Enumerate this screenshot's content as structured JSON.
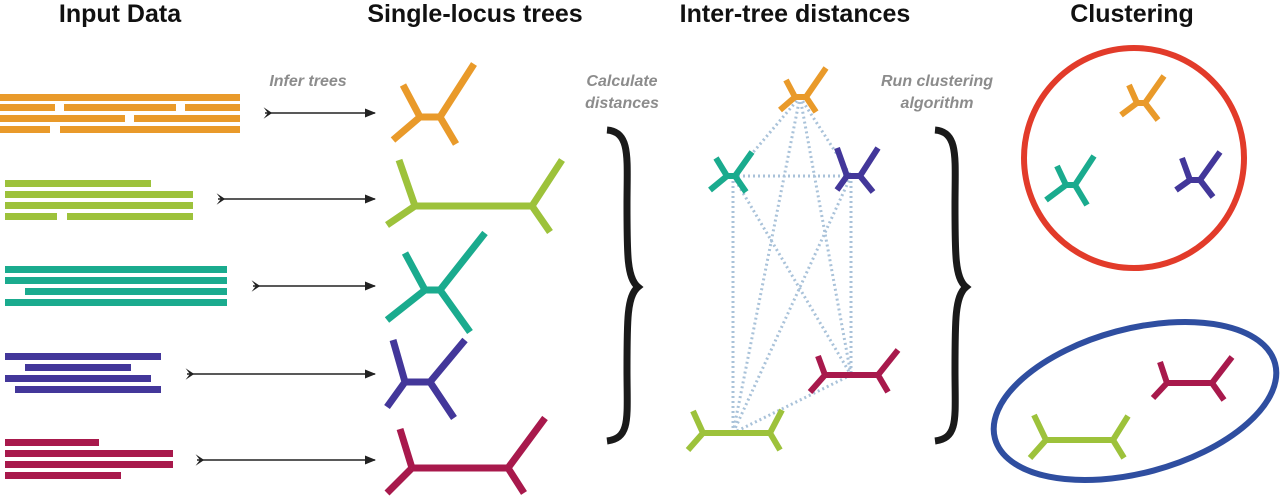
{
  "headers": {
    "input": "Input Data",
    "trees": "Single-locus trees",
    "distances": "Inter-tree distances",
    "clustering": "Clustering"
  },
  "steps": {
    "infer": "Infer trees",
    "calc_line1": "Calculate",
    "calc_line2": "distances",
    "run_line1": "Run clustering",
    "run_line2": "algorithm"
  },
  "colors": {
    "orange": "#e99a2a",
    "lime": "#9dc23b",
    "teal": "#1aab8e",
    "indigo": "#43379a",
    "crimson": "#a8194c",
    "cluster_red": "#e23b2a",
    "cluster_blue": "#2f4ea0",
    "dotted": "#a9c2d9",
    "arrow": "#222222",
    "brace": "#1a1a1a"
  },
  "loci": [
    {
      "color": "orange",
      "name": "orange-locus"
    },
    {
      "color": "lime",
      "name": "lime-locus"
    },
    {
      "color": "teal",
      "name": "teal-locus"
    },
    {
      "color": "indigo",
      "name": "indigo-locus"
    },
    {
      "color": "crimson",
      "name": "crimson-locus"
    }
  ]
}
